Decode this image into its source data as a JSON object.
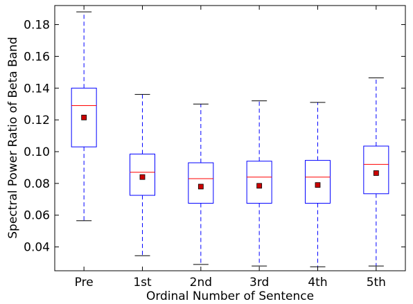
{
  "chart_data": {
    "type": "boxplot",
    "xlabel": "Ordinal Number of Sentence",
    "ylabel": "Spectral Power Ratio of Beta Band",
    "ylim": [
      0.025,
      0.192
    ],
    "yticks": [
      "0.04",
      "0.06",
      "0.08",
      "0.10",
      "0.12",
      "0.14",
      "0.16",
      "0.18"
    ],
    "grid": false,
    "colors": {
      "box": "#0000ff",
      "median": "#ff0000",
      "mean_marker": "#cc0000",
      "whisker": "#0000ff",
      "cap": "#000000"
    },
    "categories": [
      "Pre",
      "1st",
      "2nd",
      "3rd",
      "4th",
      "5th"
    ],
    "boxes": [
      {
        "whisker_low": 0.0565,
        "q1": 0.103,
        "median": 0.129,
        "q3": 0.14,
        "whisker_high": 0.188,
        "mean": 0.1215
      },
      {
        "whisker_low": 0.0345,
        "q1": 0.0725,
        "median": 0.087,
        "q3": 0.0985,
        "whisker_high": 0.136,
        "mean": 0.084
      },
      {
        "whisker_low": 0.029,
        "q1": 0.0675,
        "median": 0.083,
        "q3": 0.093,
        "whisker_high": 0.13,
        "mean": 0.078
      },
      {
        "whisker_low": 0.028,
        "q1": 0.0675,
        "median": 0.084,
        "q3": 0.094,
        "whisker_high": 0.132,
        "mean": 0.0785
      },
      {
        "whisker_low": 0.0275,
        "q1": 0.0675,
        "median": 0.084,
        "q3": 0.0945,
        "whisker_high": 0.131,
        "mean": 0.079
      },
      {
        "whisker_low": 0.028,
        "q1": 0.0735,
        "median": 0.092,
        "q3": 0.1035,
        "whisker_high": 0.1465,
        "mean": 0.0865
      }
    ]
  }
}
